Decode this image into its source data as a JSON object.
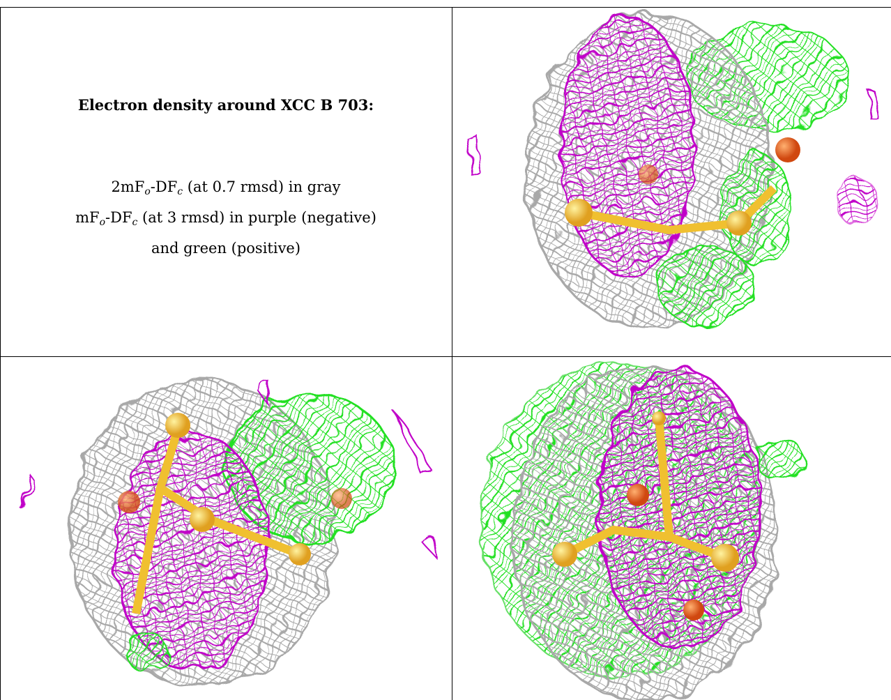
{
  "caption": {
    "title": "Electron density around XCC B 703:",
    "lines": [
      [
        "2mF",
        "o",
        "-DF",
        "c",
        " (at 0.7 rmsd) in gray"
      ],
      [
        "mF",
        "o",
        "-DF",
        "c",
        " (at 3 rmsd) in purple (negative)"
      ],
      [
        "and green (positive)"
      ]
    ]
  }
}
